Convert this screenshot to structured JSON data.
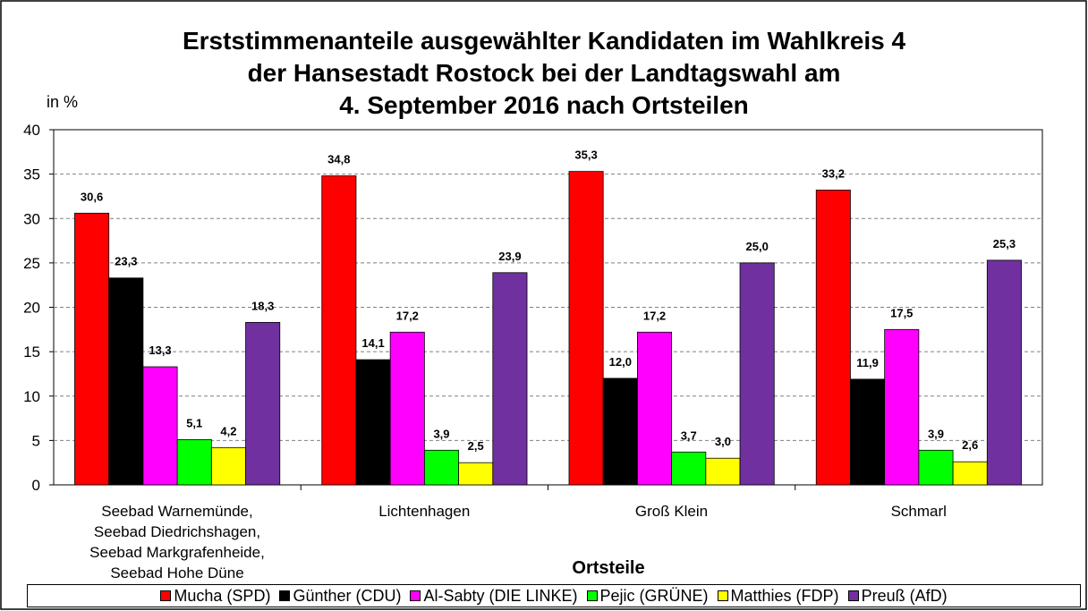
{
  "chart_data": {
    "type": "bar",
    "title": "Erststimmenanteile ausgewählter Kandidaten im Wahlkreis 4\nder Hansestadt Rostock bei der Landtagswahl am\n4. September 2016 nach Ortsteilen",
    "y_label": "in %",
    "x_label": "Ortsteile",
    "categories": [
      "Seebad Warnemünde,\nSeebad Diedrichshagen,\nSeebad Markgrafenheide,\nSeebad Hohe Düne",
      "Lichtenhagen",
      "Groß Klein",
      "Schmarl"
    ],
    "series": [
      {
        "name": "Mucha (SPD)",
        "color": "#ff0000",
        "values": [
          30.6,
          34.8,
          35.3,
          33.2
        ],
        "value_labels": [
          "30,6",
          "34,8",
          "35,3",
          "33,2"
        ]
      },
      {
        "name": "Günther (CDU)",
        "color": "#000000",
        "values": [
          23.3,
          14.1,
          12.0,
          11.9
        ],
        "value_labels": [
          "23,3",
          "14,1",
          "12,0",
          "11,9"
        ]
      },
      {
        "name": "Al-Sabty (DIE LINKE)",
        "color": "#ff00ff",
        "values": [
          13.3,
          17.2,
          17.2,
          17.5
        ],
        "value_labels": [
          "13,3",
          "17,2",
          "17,2",
          "17,5"
        ]
      },
      {
        "name": "Pejic (GRÜNE)",
        "color": "#00ff00",
        "values": [
          5.1,
          3.9,
          3.7,
          3.9
        ],
        "value_labels": [
          "5,1",
          "3,9",
          "3,7",
          "3,9"
        ]
      },
      {
        "name": "Matthies (FDP)",
        "color": "#ffff00",
        "values": [
          4.2,
          2.5,
          3.0,
          2.6
        ],
        "value_labels": [
          "4,2",
          "2,5",
          "3,0",
          "2,6"
        ]
      },
      {
        "name": "Preuß (AfD)",
        "color": "#7030a0",
        "values": [
          18.3,
          23.9,
          25.0,
          25.3
        ],
        "value_labels": [
          "18,3",
          "23,9",
          "25,0",
          "25,3"
        ]
      }
    ],
    "ylim": [
      0,
      40
    ],
    "yticks": [
      0,
      5,
      10,
      15,
      20,
      25,
      30,
      35,
      40
    ],
    "grid": true,
    "legend": "bottom"
  }
}
